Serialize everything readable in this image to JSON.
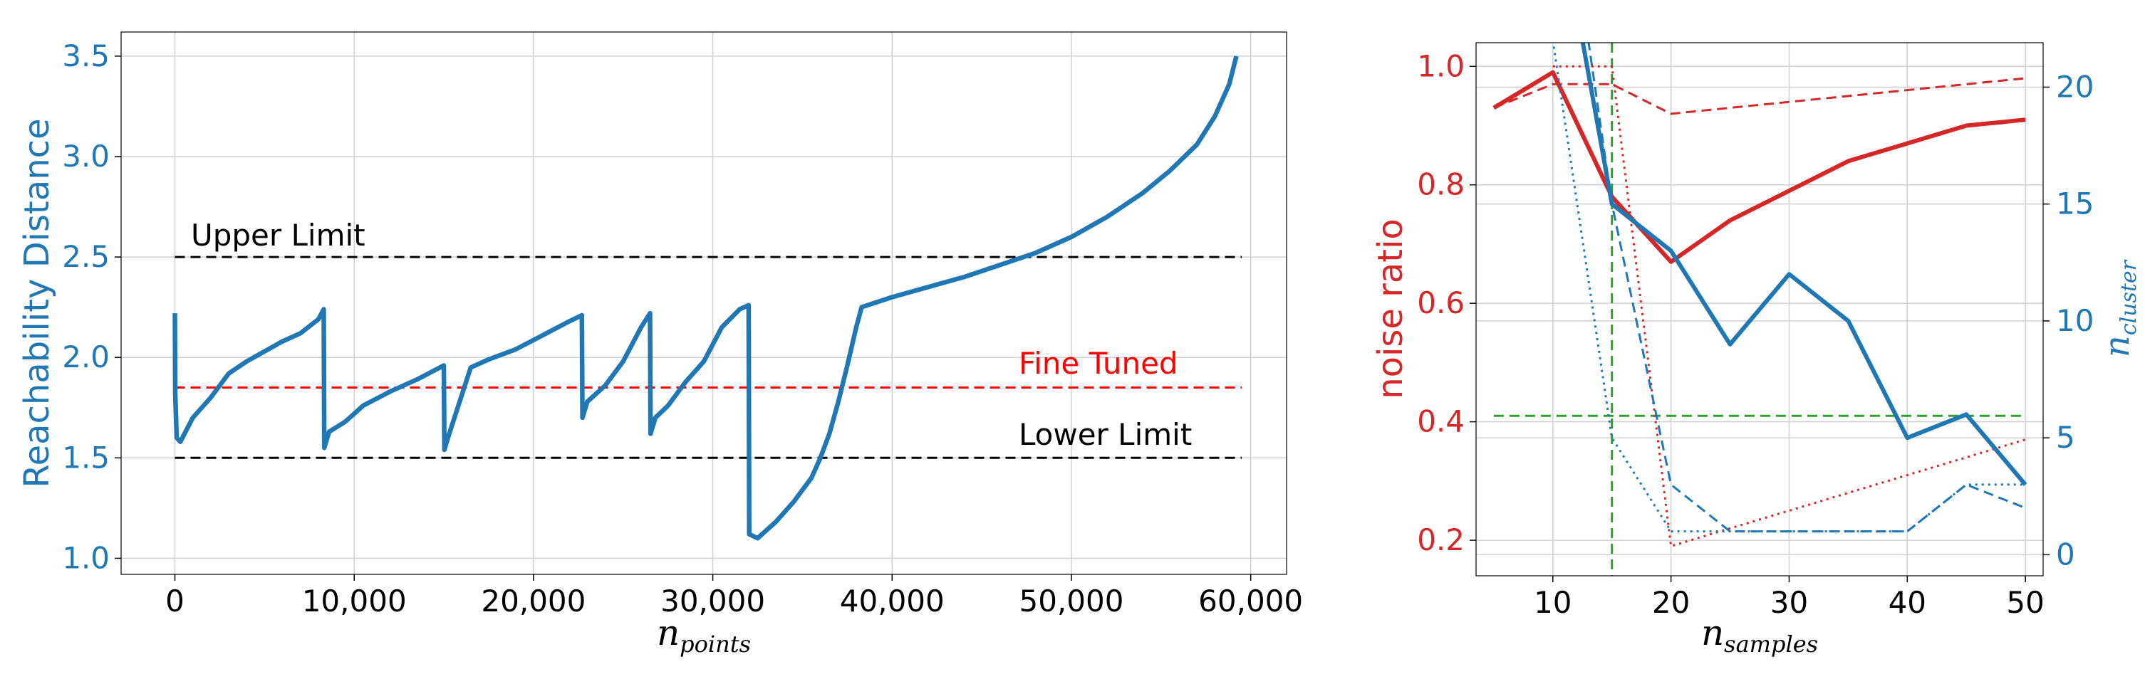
{
  "colors": {
    "blue": "#1f77b4",
    "red": "#d62728",
    "green": "#2ca02c",
    "black": "#000000",
    "grid": "#d0d0d0"
  },
  "chart_data": [
    {
      "type": "line",
      "grid": true,
      "xlabel": "n_points",
      "xlabel_main": "n",
      "xlabel_sub": "points",
      "ylabel": "Reachability Distance",
      "xlim": [
        -3000,
        62000
      ],
      "ylim": [
        0.92,
        3.62
      ],
      "xticks": [
        0,
        10000,
        20000,
        30000,
        40000,
        50000,
        60000
      ],
      "xtick_labels": [
        "0",
        "10,000",
        "20,000",
        "30,000",
        "40,000",
        "50,000",
        "60,000"
      ],
      "yticks": [
        1.0,
        1.5,
        2.0,
        2.5,
        3.0,
        3.5
      ],
      "ytick_labels": [
        "1.0",
        "1.5",
        "2.0",
        "2.5",
        "3.0",
        "3.5"
      ],
      "hlines": [
        {
          "label": "Upper Limit",
          "y": 2.5,
          "x_range": [
            0,
            59500
          ],
          "color": "black",
          "style": "dashed"
        },
        {
          "label": "Fine Tuned",
          "y": 1.85,
          "x_range": [
            0,
            59500
          ],
          "color": "red",
          "style": "dashed"
        },
        {
          "label": "Lower Limit",
          "y": 1.5,
          "x_range": [
            0,
            59500
          ],
          "color": "black",
          "style": "dashed"
        }
      ],
      "series": [
        {
          "color": "blue",
          "points": [
            [
              0,
              2.22
            ],
            [
              20,
              1.82
            ],
            [
              100,
              1.6
            ],
            [
              300,
              1.58
            ],
            [
              1000,
              1.7
            ],
            [
              2000,
              1.8
            ],
            [
              3000,
              1.92
            ],
            [
              4000,
              1.98
            ],
            [
              5000,
              2.03
            ],
            [
              6000,
              2.08
            ],
            [
              7000,
              2.12
            ],
            [
              8000,
              2.19
            ],
            [
              8300,
              2.24
            ],
            [
              8330,
              1.55
            ],
            [
              8600,
              1.63
            ],
            [
              9500,
              1.68
            ],
            [
              10500,
              1.76
            ],
            [
              12000,
              1.83
            ],
            [
              13500,
              1.89
            ],
            [
              15000,
              1.96
            ],
            [
              15030,
              1.54
            ],
            [
              15300,
              1.62
            ],
            [
              16500,
              1.95
            ],
            [
              17500,
              1.99
            ],
            [
              19000,
              2.04
            ],
            [
              20500,
              2.11
            ],
            [
              22000,
              2.18
            ],
            [
              22700,
              2.21
            ],
            [
              22730,
              1.7
            ],
            [
              23000,
              1.78
            ],
            [
              24000,
              1.86
            ],
            [
              25000,
              1.98
            ],
            [
              26000,
              2.15
            ],
            [
              26500,
              2.22
            ],
            [
              26530,
              1.62
            ],
            [
              26800,
              1.7
            ],
            [
              27500,
              1.76
            ],
            [
              28500,
              1.88
            ],
            [
              29500,
              1.98
            ],
            [
              30500,
              2.15
            ],
            [
              31500,
              2.24
            ],
            [
              32000,
              2.26
            ],
            [
              32030,
              1.12
            ],
            [
              32500,
              1.1
            ],
            [
              33500,
              1.18
            ],
            [
              34500,
              1.28
            ],
            [
              35500,
              1.4
            ],
            [
              36000,
              1.5
            ],
            [
              36500,
              1.62
            ],
            [
              37000,
              1.78
            ],
            [
              37500,
              1.96
            ],
            [
              38000,
              2.15
            ],
            [
              38300,
              2.25
            ],
            [
              40000,
              2.3
            ],
            [
              42000,
              2.35
            ],
            [
              44000,
              2.4
            ],
            [
              46000,
              2.46
            ],
            [
              48000,
              2.52
            ],
            [
              50000,
              2.6
            ],
            [
              52000,
              2.7
            ],
            [
              54000,
              2.82
            ],
            [
              55500,
              2.93
            ],
            [
              57000,
              3.06
            ],
            [
              58000,
              3.2
            ],
            [
              58800,
              3.36
            ],
            [
              59200,
              3.5
            ]
          ]
        }
      ]
    },
    {
      "type": "line",
      "grid": true,
      "xlabel": "n_samples",
      "xlabel_main": "n",
      "xlabel_sub": "samples",
      "ylabel_left": "noise ratio",
      "ylabel_right": "n_cluster",
      "ylabel_right_main": "n",
      "ylabel_right_sub": "cluster",
      "xlim": [
        3.5,
        51.5
      ],
      "ylim_left": [
        0.14,
        1.04
      ],
      "ylim_right": [
        -0.9,
        21.9
      ],
      "xticks": [
        10,
        20,
        30,
        40,
        50
      ],
      "xtick_labels": [
        "10",
        "20",
        "30",
        "40",
        "50"
      ],
      "yticks_left": [
        0.2,
        0.4,
        0.6,
        0.8,
        1.0
      ],
      "ytick_labels_left": [
        "0.2",
        "0.4",
        "0.6",
        "0.8",
        "1.0"
      ],
      "yticks_right": [
        0,
        5,
        10,
        15,
        20
      ],
      "ytick_labels_right": [
        "0",
        "5",
        "10",
        "15",
        "20"
      ],
      "series": [
        {
          "axis": "left",
          "color": "red",
          "style": "solid",
          "x": [
            5,
            10,
            15,
            20,
            25,
            30,
            35,
            40,
            45,
            50
          ],
          "values": [
            0.93,
            0.99,
            0.78,
            0.67,
            0.74,
            0.79,
            0.84,
            0.87,
            0.9,
            0.91
          ]
        },
        {
          "axis": "left",
          "color": "red",
          "style": "dashed",
          "x": [
            5,
            10,
            15,
            20,
            25,
            30,
            35,
            40,
            45,
            50
          ],
          "values": [
            0.93,
            0.97,
            0.97,
            0.92,
            0.93,
            0.94,
            0.95,
            0.96,
            0.97,
            0.98
          ]
        },
        {
          "axis": "left",
          "color": "red",
          "style": "dotted",
          "x": [
            10,
            15,
            20,
            25,
            30,
            35,
            40,
            45,
            50
          ],
          "values": [
            1.0,
            1.0,
            0.19,
            0.22,
            0.25,
            0.28,
            0.31,
            0.34,
            0.37
          ]
        },
        {
          "axis": "right",
          "color": "blue",
          "style": "solid",
          "x": [
            12.5,
            15,
            20,
            25,
            30,
            35,
            40,
            45,
            50
          ],
          "values": [
            22,
            15,
            13,
            9,
            12,
            10,
            5,
            6,
            3
          ]
        },
        {
          "axis": "right",
          "color": "blue",
          "style": "dashed",
          "x": [
            13,
            15,
            20,
            25,
            30,
            35,
            40,
            45,
            50
          ],
          "values": [
            22,
            15,
            3,
            1,
            1,
            1,
            1,
            3,
            2
          ]
        },
        {
          "axis": "right",
          "color": "blue",
          "style": "dotted",
          "x": [
            10,
            15,
            20,
            25,
            30,
            35,
            40,
            45,
            50
          ],
          "values": [
            22,
            5,
            1,
            1,
            1,
            1,
            1,
            3,
            3
          ]
        }
      ],
      "hlines": [
        {
          "axis": "left",
          "y": 0.41,
          "color": "green",
          "style": "dashed"
        }
      ],
      "vlines": [
        {
          "x": 15,
          "color": "green",
          "style": "dashed"
        }
      ]
    }
  ]
}
